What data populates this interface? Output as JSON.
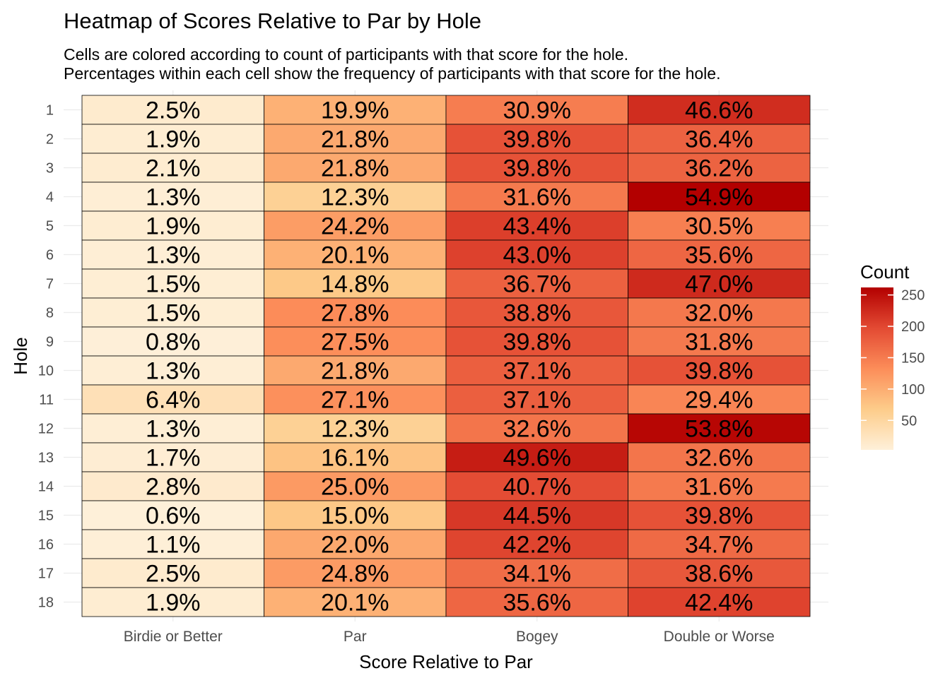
{
  "chart_data": {
    "type": "heatmap",
    "title": "Heatmap of Scores Relative to Par by Hole",
    "subtitle": [
      "Cells are colored according to count of participants with that score for the hole.",
      "Percentages within each cell show the frequency of participants with that score for the hole."
    ],
    "xlabel": "Score Relative to Par",
    "ylabel": "Hole",
    "x_categories": [
      "Birdie or Better",
      "Par",
      "Bogey",
      "Double or Worse"
    ],
    "y_categories": [
      "1",
      "2",
      "3",
      "4",
      "5",
      "6",
      "7",
      "8",
      "9",
      "10",
      "11",
      "12",
      "13",
      "14",
      "15",
      "16",
      "17",
      "18"
    ],
    "cell_labels": [
      [
        "2.5%",
        "19.9%",
        "30.9%",
        "46.6%"
      ],
      [
        "1.9%",
        "21.8%",
        "39.8%",
        "36.4%"
      ],
      [
        "2.1%",
        "21.8%",
        "39.8%",
        "36.2%"
      ],
      [
        "1.3%",
        "12.3%",
        "31.6%",
        "54.9%"
      ],
      [
        "1.9%",
        "24.2%",
        "43.4%",
        "30.5%"
      ],
      [
        "1.3%",
        "20.1%",
        "43.0%",
        "35.6%"
      ],
      [
        "1.5%",
        "14.8%",
        "36.7%",
        "47.0%"
      ],
      [
        "1.5%",
        "27.8%",
        "38.8%",
        "32.0%"
      ],
      [
        "0.8%",
        "27.5%",
        "39.8%",
        "31.8%"
      ],
      [
        "1.3%",
        "21.8%",
        "37.1%",
        "39.8%"
      ],
      [
        "6.4%",
        "27.1%",
        "37.1%",
        "29.4%"
      ],
      [
        "1.3%",
        "12.3%",
        "32.6%",
        "53.8%"
      ],
      [
        "1.7%",
        "16.1%",
        "49.6%",
        "32.6%"
      ],
      [
        "2.8%",
        "25.0%",
        "40.7%",
        "31.6%"
      ],
      [
        "0.6%",
        "15.0%",
        "44.5%",
        "39.8%"
      ],
      [
        "1.1%",
        "22.0%",
        "42.2%",
        "34.7%"
      ],
      [
        "2.5%",
        "24.8%",
        "34.1%",
        "38.6%"
      ],
      [
        "1.9%",
        "20.1%",
        "35.6%",
        "42.4%"
      ]
    ],
    "frequency_pct": [
      [
        2.5,
        19.9,
        30.9,
        46.6
      ],
      [
        1.9,
        21.8,
        39.8,
        36.4
      ],
      [
        2.1,
        21.8,
        39.8,
        36.2
      ],
      [
        1.3,
        12.3,
        31.6,
        54.9
      ],
      [
        1.9,
        24.2,
        43.4,
        30.5
      ],
      [
        1.3,
        20.1,
        43.0,
        35.6
      ],
      [
        1.5,
        14.8,
        36.7,
        47.0
      ],
      [
        1.5,
        27.8,
        38.8,
        32.0
      ],
      [
        0.8,
        27.5,
        39.8,
        31.8
      ],
      [
        1.3,
        21.8,
        37.1,
        39.8
      ],
      [
        6.4,
        27.1,
        37.1,
        29.4
      ],
      [
        1.3,
        12.3,
        32.6,
        53.8
      ],
      [
        1.7,
        16.1,
        49.6,
        32.6
      ],
      [
        2.8,
        25.0,
        40.7,
        31.6
      ],
      [
        0.6,
        15.0,
        44.5,
        39.8
      ],
      [
        1.1,
        22.0,
        42.2,
        34.7
      ],
      [
        2.5,
        24.8,
        34.1,
        38.6
      ],
      [
        1.9,
        20.1,
        35.6,
        42.4
      ]
    ],
    "counts_estimated": [
      [
        12,
        95,
        148,
        223
      ],
      [
        9,
        104,
        190,
        174
      ],
      [
        10,
        104,
        190,
        173
      ],
      [
        6,
        59,
        151,
        262
      ],
      [
        9,
        116,
        207,
        146
      ],
      [
        6,
        96,
        205,
        170
      ],
      [
        7,
        71,
        175,
        225
      ],
      [
        7,
        133,
        185,
        153
      ],
      [
        4,
        131,
        190,
        152
      ],
      [
        6,
        104,
        177,
        190
      ],
      [
        31,
        129,
        177,
        140
      ],
      [
        6,
        59,
        156,
        257
      ],
      [
        8,
        77,
        237,
        156
      ],
      [
        13,
        119,
        195,
        151
      ],
      [
        3,
        72,
        213,
        190
      ],
      [
        5,
        105,
        202,
        166
      ],
      [
        12,
        118,
        163,
        184
      ],
      [
        9,
        96,
        170,
        203
      ]
    ],
    "legend": {
      "title": "Count",
      "ticks": [
        50,
        100,
        150,
        200,
        250
      ],
      "range": [
        3,
        262
      ],
      "placement": "right",
      "colors": [
        "#fef0d9",
        "#fdcc8a",
        "#fc8d59",
        "#e34a33",
        "#b30000"
      ]
    },
    "grid": true
  }
}
